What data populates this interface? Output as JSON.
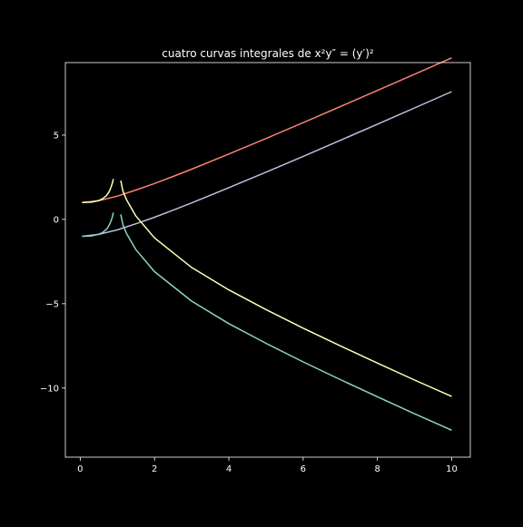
{
  "chart_data": {
    "type": "line",
    "title": "cuatro curvas integrales de x²y″ = (y′)²",
    "xlabel": "",
    "ylabel": "",
    "xlim": [
      -0.4,
      10.5
    ],
    "ylim": [
      -14.1,
      9.3
    ],
    "xticks": [
      0,
      2,
      4,
      6,
      8,
      10
    ],
    "xtick_labels": [
      "0",
      "2",
      "4",
      "6",
      "8",
      "10"
    ],
    "yticks": [
      5,
      0,
      -5,
      -10
    ],
    "ytick_labels": [
      "5",
      "0",
      "−5",
      "−10"
    ],
    "grid": false,
    "legend": "none",
    "colors": {
      "background": "#000000",
      "axes": "#ffffff",
      "text": "#ffffff"
    },
    "series": [
      {
        "color": "#fa8174",
        "segments": [
          {
            "x": [
              0.05,
              0.5,
              1,
              1.5,
              2,
              2.5,
              3,
              4,
              5,
              6,
              7,
              8,
              9,
              10
            ],
            "y": [
              1.0,
              1.11,
              1.38,
              1.74,
              2.13,
              2.55,
              2.98,
              3.88,
              4.8,
              5.74,
              6.69,
              7.65,
              8.61,
              9.58
            ]
          }
        ]
      },
      {
        "color": "#bcbde0",
        "segments": [
          {
            "x": [
              0.05,
              0.5,
              1,
              1.5,
              2,
              2.5,
              3,
              4,
              5,
              6,
              7,
              8,
              9,
              10
            ],
            "y": [
              -1.0,
              -0.89,
              -0.62,
              -0.26,
              0.13,
              0.55,
              0.98,
              1.88,
              2.8,
              3.74,
              4.69,
              5.65,
              6.61,
              7.58
            ]
          }
        ]
      },
      {
        "color": "#feffb3",
        "segments": [
          {
            "x": [
              0.05,
              0.3,
              0.5,
              0.6,
              0.7,
              0.75,
              0.8,
              0.84,
              0.87,
              0.89
            ],
            "y": [
              1.0,
              1.02,
              1.12,
              1.22,
              1.4,
              1.55,
              1.75,
              1.98,
              2.2,
              2.4
            ]
          },
          {
            "x": [
              1.09,
              1.15,
              1.25,
              1.5,
              2,
              3,
              4,
              5,
              6,
              7,
              8,
              9,
              10
            ],
            "y": [
              2.3,
              1.68,
              1.15,
              0.2,
              -1.1,
              -2.85,
              -4.18,
              -5.35,
              -6.45,
              -7.5,
              -8.52,
              -9.53,
              -10.5
            ]
          }
        ]
      },
      {
        "color": "#8dd3c7",
        "segments": [
          {
            "x": [
              0.05,
              0.3,
              0.5,
              0.6,
              0.7,
              0.75,
              0.8,
              0.84,
              0.87,
              0.89
            ],
            "y": [
              -1.0,
              -0.98,
              -0.88,
              -0.78,
              -0.6,
              -0.45,
              -0.25,
              -0.02,
              0.2,
              0.4
            ]
          },
          {
            "x": [
              1.09,
              1.15,
              1.25,
              1.5,
              2,
              3,
              4,
              5,
              6,
              7,
              8,
              9,
              10
            ],
            "y": [
              0.3,
              -0.32,
              -0.85,
              -1.8,
              -3.1,
              -4.85,
              -6.18,
              -7.35,
              -8.45,
              -9.5,
              -10.52,
              -11.53,
              -12.5
            ]
          }
        ]
      }
    ]
  }
}
